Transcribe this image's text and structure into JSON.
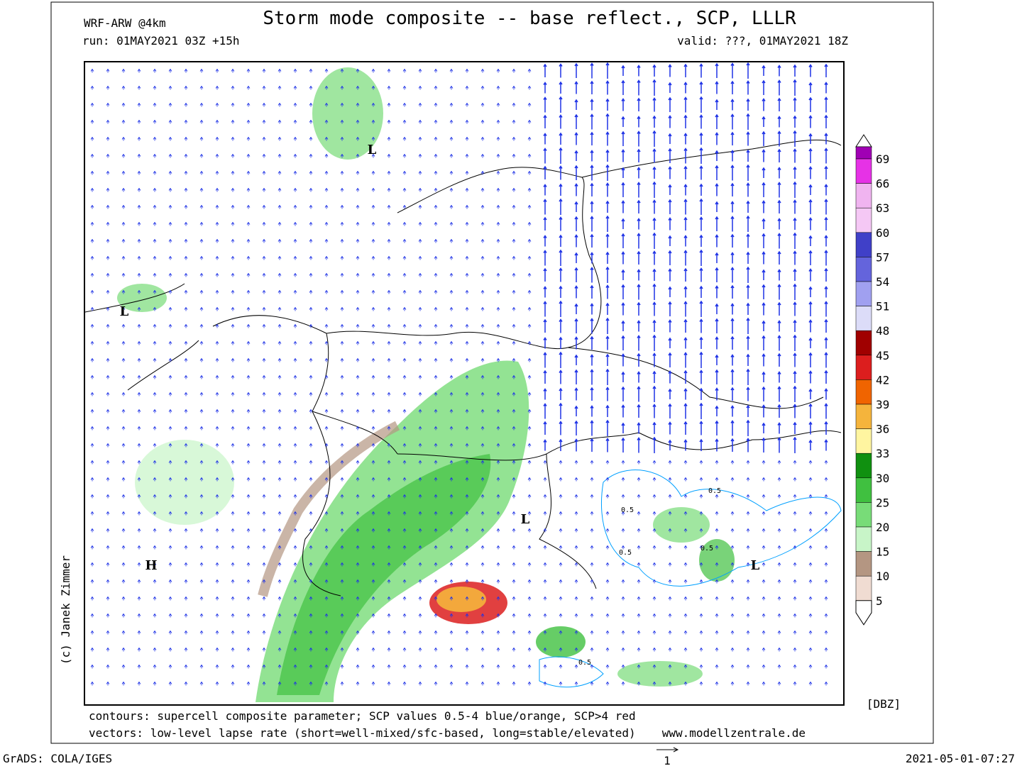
{
  "header": {
    "model": "WRF-ARW @4km",
    "title": "Storm mode composite -- base reflect., SCP, LLLR",
    "run": "run: 01MAY2021 03Z +15h",
    "valid": "valid: ???, 01MAY2021 18Z"
  },
  "credit": "(c) Janek Zimmer",
  "colorbar": {
    "unit": "[DBZ]",
    "labels": [
      69,
      66,
      63,
      60,
      57,
      54,
      51,
      48,
      45,
      42,
      39,
      36,
      33,
      30,
      25,
      20,
      15,
      10,
      5
    ],
    "colors": [
      "#e632e6",
      "#f0b4f0",
      "#f5c8f5",
      "#4040c8",
      "#6464dc",
      "#a0a0f0",
      "#dcdcf8",
      "#a00000",
      "#dc1e1e",
      "#f06400",
      "#f5b43c",
      "#fff5a0",
      "#109010",
      "#40c040",
      "#78dc78",
      "#c8f5c8",
      "#b49682",
      "#f0dcd2"
    ],
    "top_color": "#a000b4"
  },
  "footer": {
    "contours": "contours: supercell composite parameter; SCP values 0.5-4 blue/orange, SCP>4 red",
    "vectors": "vectors: low-level lapse rate (short=well-mixed/sfc-based, long=stable/elevated)",
    "website": "www.modellzentrale.de",
    "software": "GrADS: COLA/IGES",
    "vector_scale": "1",
    "timestamp": "2021-05-01-07:27"
  },
  "map_labels": [
    "L",
    "L",
    "L",
    "L",
    "H"
  ],
  "contour_labels": [
    "0.5",
    "0.5",
    "0.5",
    "0.5",
    "0.5"
  ]
}
